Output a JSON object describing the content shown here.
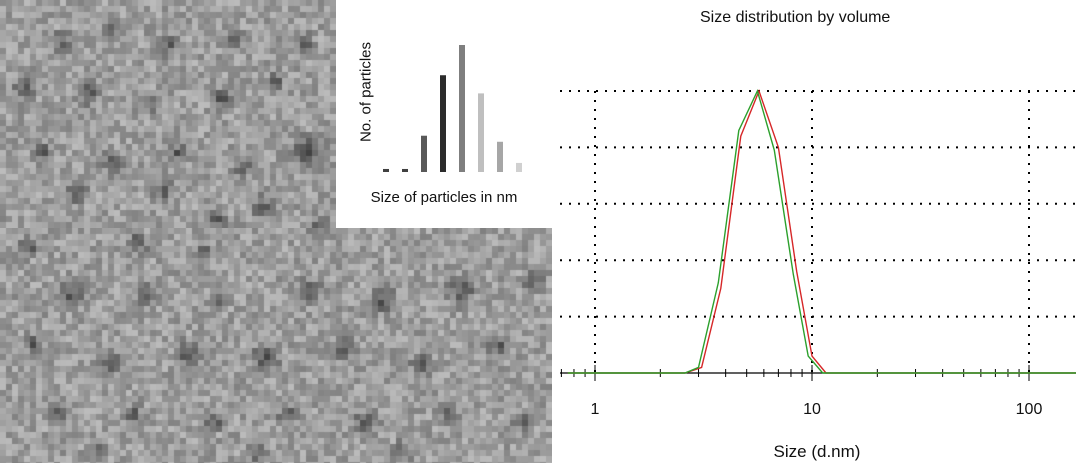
{
  "micrograph": {
    "seed": 9137,
    "dots": [
      [
        58,
        38,
        9
      ],
      [
        108,
        30,
        8
      ],
      [
        165,
        42,
        10
      ],
      [
        230,
        35,
        9
      ],
      [
        300,
        40,
        9
      ],
      [
        22,
        85,
        10
      ],
      [
        85,
        90,
        11
      ],
      [
        150,
        98,
        9
      ],
      [
        218,
        95,
        10
      ],
      [
        272,
        78,
        8
      ],
      [
        305,
        150,
        16
      ],
      [
        40,
        150,
        9
      ],
      [
        110,
        160,
        10
      ],
      [
        176,
        150,
        9
      ],
      [
        240,
        165,
        9
      ],
      [
        75,
        190,
        11
      ],
      [
        160,
        188,
        10
      ],
      [
        215,
        215,
        9
      ],
      [
        260,
        205,
        12
      ],
      [
        25,
        245,
        9
      ],
      [
        135,
        240,
        10
      ],
      [
        200,
        250,
        9
      ],
      [
        318,
        222,
        10
      ],
      [
        68,
        290,
        14
      ],
      [
        145,
        292,
        10
      ],
      [
        215,
        300,
        9
      ],
      [
        306,
        288,
        12
      ],
      [
        380,
        297,
        12
      ],
      [
        458,
        288,
        13
      ],
      [
        530,
        278,
        9
      ],
      [
        30,
        340,
        9
      ],
      [
        108,
        360,
        10
      ],
      [
        185,
        350,
        11
      ],
      [
        262,
        355,
        13
      ],
      [
        342,
        346,
        10
      ],
      [
        418,
        362,
        10
      ],
      [
        495,
        343,
        10
      ],
      [
        55,
        408,
        10
      ],
      [
        130,
        412,
        9
      ],
      [
        210,
        418,
        10
      ],
      [
        285,
        412,
        10
      ],
      [
        362,
        420,
        11
      ],
      [
        445,
        410,
        10
      ],
      [
        520,
        418,
        9
      ],
      [
        95,
        445,
        9
      ],
      [
        255,
        448,
        10
      ],
      [
        400,
        448,
        9
      ]
    ]
  },
  "inset_histogram": {
    "ylabel": "No. of particles",
    "xlabel": "Size of particles in nm",
    "values": [
      1,
      1,
      12,
      32,
      42,
      26,
      10,
      3
    ],
    "colors": [
      "#404040",
      "#404040",
      "#595959",
      "#2b2b2b",
      "#7f7f7f",
      "#bfbfbf",
      "#a6a6a6",
      "#d0d0d0"
    ]
  },
  "dls_chart": {
    "title": "Size distribution by volume",
    "xlabel": "Size (d.nm)",
    "x_ticks": [
      "1",
      "10",
      "100"
    ]
  },
  "chart_data": [
    {
      "type": "bar",
      "xlabel": "Size of particles in nm",
      "ylabel": "No. of particles",
      "values": [
        1,
        1,
        12,
        32,
        42,
        26,
        10,
        3
      ]
    },
    {
      "type": "line",
      "title": "Size distribution by volume",
      "xlabel": "Size (d.nm)",
      "ylabel": "",
      "x_scale": "log",
      "xlim": [
        0.75,
        175
      ],
      "ylim": [
        0,
        100
      ],
      "x_ticks": [
        1,
        10,
        100
      ],
      "grid": true,
      "series": [
        {
          "color": "#d62728",
          "x": [
            0.75,
            2.6,
            3.1,
            3.8,
            4.7,
            5.7,
            7.0,
            8.5,
            10.0,
            11.6,
            175
          ],
          "y": [
            0,
            0,
            2,
            30,
            84,
            100,
            80,
            36,
            6,
            0,
            0
          ]
        },
        {
          "color": "#2ca02c",
          "x": [
            0.75,
            2.6,
            3.0,
            3.7,
            4.6,
            5.6,
            6.7,
            8.2,
            9.6,
            11.2,
            175
          ],
          "y": [
            0,
            0,
            2,
            32,
            86,
            100,
            79,
            35,
            6,
            0,
            0
          ]
        }
      ]
    }
  ]
}
